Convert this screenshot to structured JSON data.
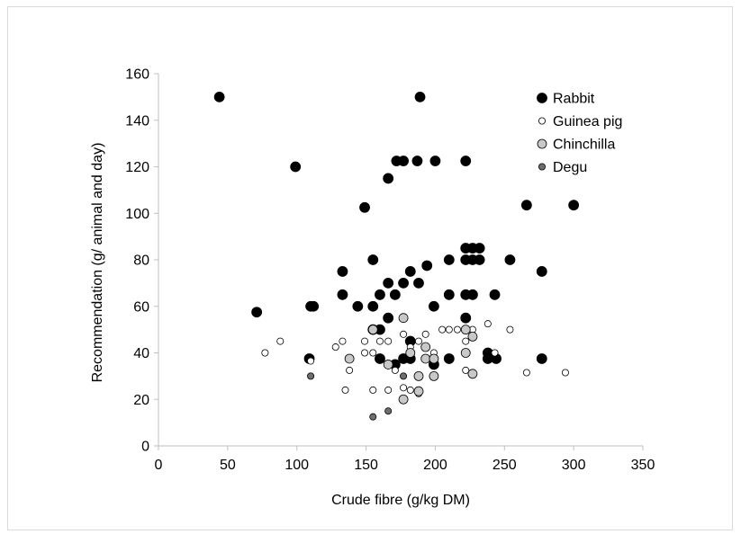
{
  "chart_data": {
    "type": "scatter",
    "title": "",
    "xlabel": "Crude fibre (g/kg DM)",
    "ylabel": "Recommendation (g/ animal and day)",
    "xlim": [
      0,
      350
    ],
    "ylim": [
      0,
      160
    ],
    "x_ticks": [
      "0",
      "50",
      "100",
      "150",
      "200",
      "250",
      "300",
      "350"
    ],
    "y_ticks": [
      "0",
      "20",
      "40",
      "60",
      "80",
      "100",
      "120",
      "140",
      "160"
    ],
    "grid": false,
    "legend_position": "top-right",
    "series": [
      {
        "name": "Rabbit",
        "color": "#000000",
        "marker_size": "large",
        "points": [
          [
            44,
            150
          ],
          [
            189,
            150
          ],
          [
            172,
            122.5
          ],
          [
            177,
            122.5
          ],
          [
            187,
            122.5
          ],
          [
            200,
            122.5
          ],
          [
            222,
            122.5
          ],
          [
            99,
            120
          ],
          [
            166,
            115
          ],
          [
            149,
            102.5
          ],
          [
            266,
            103.5
          ],
          [
            300,
            103.5
          ],
          [
            222,
            85
          ],
          [
            227,
            85
          ],
          [
            232,
            85
          ],
          [
            155,
            80
          ],
          [
            210,
            80
          ],
          [
            222,
            80
          ],
          [
            227,
            80
          ],
          [
            232,
            80
          ],
          [
            254,
            80
          ],
          [
            194,
            77.5
          ],
          [
            133,
            75
          ],
          [
            182,
            75
          ],
          [
            277,
            75
          ],
          [
            166,
            70
          ],
          [
            177,
            70
          ],
          [
            188,
            70
          ],
          [
            133,
            65
          ],
          [
            160,
            65
          ],
          [
            171,
            65
          ],
          [
            210,
            65
          ],
          [
            222,
            65
          ],
          [
            227,
            65
          ],
          [
            243,
            65
          ],
          [
            110,
            60
          ],
          [
            112,
            60
          ],
          [
            144,
            60
          ],
          [
            155,
            60
          ],
          [
            199,
            60
          ],
          [
            71,
            57.5
          ],
          [
            166,
            55
          ],
          [
            222,
            55
          ],
          [
            155,
            50
          ],
          [
            160,
            50
          ],
          [
            182,
            45
          ],
          [
            109,
            37.5
          ],
          [
            160,
            37.5
          ],
          [
            177,
            37.5
          ],
          [
            182,
            37.5
          ],
          [
            210,
            37.5
          ],
          [
            238,
            37.5
          ],
          [
            244,
            37.5
          ],
          [
            277,
            37.5
          ],
          [
            171,
            35
          ],
          [
            199,
            35
          ],
          [
            238,
            40
          ]
        ]
      },
      {
        "name": "Guinea pig",
        "color": "#ffffff",
        "marker_size": "small",
        "points": [
          [
            77,
            40
          ],
          [
            88,
            45
          ],
          [
            110,
            36.5
          ],
          [
            128,
            42.5
          ],
          [
            133,
            45
          ],
          [
            138,
            32.5
          ],
          [
            135,
            24
          ],
          [
            149,
            40
          ],
          [
            149,
            45
          ],
          [
            155,
            40
          ],
          [
            155,
            24
          ],
          [
            160,
            45
          ],
          [
            166,
            45
          ],
          [
            166,
            24
          ],
          [
            171,
            32.5
          ],
          [
            177,
            48
          ],
          [
            177,
            25
          ],
          [
            182,
            42.5
          ],
          [
            188,
            45
          ],
          [
            193,
            48
          ],
          [
            199,
            40
          ],
          [
            205,
            50
          ],
          [
            210,
            50
          ],
          [
            216,
            50
          ],
          [
            222,
            45
          ],
          [
            222,
            40
          ],
          [
            222,
            32.5
          ],
          [
            227,
            50
          ],
          [
            238,
            52.5
          ],
          [
            243,
            40
          ],
          [
            254,
            50
          ],
          [
            266,
            31.5
          ],
          [
            294,
            31.5
          ],
          [
            188,
            22.5
          ],
          [
            182,
            24
          ]
        ]
      },
      {
        "name": "Chinchilla",
        "color": "#c8c8c8",
        "marker_size": "medium",
        "points": [
          [
            138,
            37.5
          ],
          [
            155,
            50
          ],
          [
            166,
            35
          ],
          [
            177,
            55
          ],
          [
            182,
            40
          ],
          [
            188,
            30
          ],
          [
            193,
            37.5
          ],
          [
            193,
            42.5
          ],
          [
            199,
            30
          ],
          [
            199,
            37.5
          ],
          [
            222,
            50
          ],
          [
            222,
            40
          ],
          [
            227,
            47
          ],
          [
            227,
            31
          ],
          [
            177,
            20
          ],
          [
            188,
            23.5
          ]
        ]
      },
      {
        "name": "Degu",
        "color": "#6e6e6e",
        "marker_size": "small",
        "points": [
          [
            110,
            30
          ],
          [
            155,
            12.5
          ],
          [
            166,
            15
          ],
          [
            177,
            30
          ]
        ]
      }
    ]
  }
}
